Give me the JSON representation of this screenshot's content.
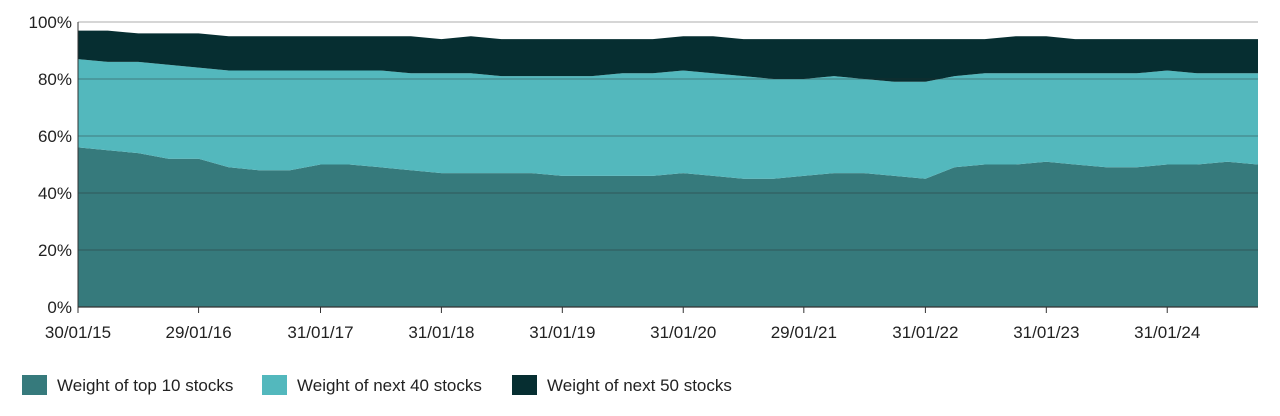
{
  "chart_data": {
    "type": "area",
    "stacked": true,
    "title": "",
    "xlabel": "",
    "ylabel": "",
    "ylim": [
      0,
      100
    ],
    "y_ticks": [
      "0%",
      "20%",
      "40%",
      "60%",
      "80%",
      "100%"
    ],
    "x_tick_labels": [
      "30/01/15",
      "29/01/16",
      "31/01/17",
      "31/01/18",
      "31/01/19",
      "31/01/20",
      "29/01/21",
      "31/01/22",
      "31/01/23",
      "31/01/24"
    ],
    "x_start": "2015-01-30",
    "x_end": "2024-10-31",
    "grid": "horizontal",
    "legend_position": "bottom",
    "colors": {
      "top10": "#367a7c",
      "next40": "#53b8bd",
      "next50": "#062e31",
      "grid": "#2a2a2a",
      "axis": "#333333"
    },
    "dates": [
      "2015-01-30",
      "2015-04-30",
      "2015-07-31",
      "2015-10-30",
      "2016-01-29",
      "2016-04-29",
      "2016-07-29",
      "2016-10-31",
      "2017-01-31",
      "2017-04-28",
      "2017-07-31",
      "2017-10-31",
      "2018-01-31",
      "2018-04-30",
      "2018-07-31",
      "2018-10-31",
      "2019-01-31",
      "2019-04-30",
      "2019-07-31",
      "2019-10-31",
      "2020-01-31",
      "2020-04-30",
      "2020-07-31",
      "2020-10-30",
      "2021-01-29",
      "2021-04-30",
      "2021-07-30",
      "2021-10-29",
      "2022-01-31",
      "2022-04-29",
      "2022-07-29",
      "2022-10-31",
      "2023-01-31",
      "2023-04-28",
      "2023-07-31",
      "2023-10-31",
      "2024-01-31",
      "2024-04-30",
      "2024-07-31",
      "2024-10-31"
    ],
    "series": [
      {
        "name": "Weight of top 10 stocks",
        "values": [
          56,
          55,
          54,
          52,
          52,
          49,
          48,
          48,
          50,
          50,
          49,
          48,
          47,
          47,
          47,
          47,
          46,
          46,
          46,
          46,
          47,
          46,
          45,
          45,
          46,
          47,
          47,
          46,
          45,
          49,
          50,
          50,
          51,
          50,
          49,
          49,
          50,
          50,
          51,
          50
        ]
      },
      {
        "name": "Weight of next 40 stocks",
        "values": [
          31,
          31,
          32,
          33,
          32,
          34,
          35,
          35,
          33,
          33,
          34,
          34,
          35,
          35,
          34,
          34,
          35,
          35,
          36,
          36,
          36,
          36,
          36,
          35,
          34,
          34,
          33,
          33,
          34,
          32,
          32,
          32,
          31,
          32,
          33,
          33,
          33,
          32,
          31,
          32
        ]
      },
      {
        "name": "Weight of next 50 stocks",
        "values": [
          10,
          11,
          10,
          11,
          12,
          12,
          12,
          12,
          12,
          12,
          12,
          13,
          12,
          13,
          13,
          13,
          13,
          13,
          12,
          12,
          12,
          13,
          13,
          14,
          14,
          13,
          14,
          15,
          15,
          13,
          12,
          13,
          13,
          12,
          12,
          12,
          11,
          12,
          12,
          12
        ]
      }
    ]
  }
}
